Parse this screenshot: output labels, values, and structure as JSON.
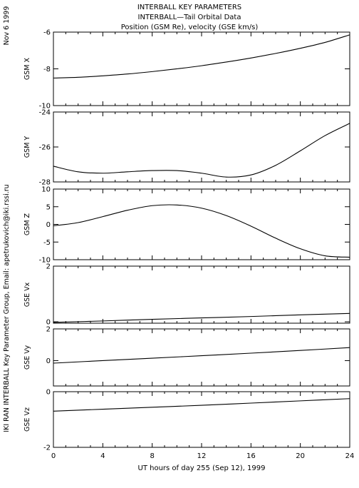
{
  "header": {
    "date_label": "Nov  6 1999",
    "title_lines": [
      "INTERBALL KEY PARAMETERS",
      "INTERBALL—Tail Orbital Data",
      "Position (GSM Re), velocity (GSE km/s)"
    ]
  },
  "side_credit": "IKI RAN INTERBALL Key Parameter Group, Email: apetrukovich@iki.rssi.ru",
  "chart_data": {
    "type": "line",
    "xlabel": "UT hours of day 255 (Sep 12), 1999",
    "xlim": [
      0,
      24
    ],
    "xticks": [
      0,
      4,
      8,
      12,
      16,
      20,
      24
    ],
    "panels": [
      {
        "ylabel": "GSM X",
        "ylim": [
          -10,
          -6
        ],
        "yticks": [
          -10,
          -8,
          -6
        ],
        "x": [
          0,
          2,
          4,
          6,
          8,
          10,
          12,
          14,
          16,
          18,
          20,
          22,
          24
        ],
        "values": [
          -8.5,
          -8.46,
          -8.38,
          -8.28,
          -8.15,
          -8.0,
          -7.83,
          -7.63,
          -7.41,
          -7.16,
          -6.88,
          -6.56,
          -6.15
        ]
      },
      {
        "ylabel": "GSM Y",
        "ylim": [
          -28,
          -24
        ],
        "yticks": [
          -28,
          -26,
          -24
        ],
        "x": [
          0,
          2,
          4,
          6,
          8,
          10,
          12,
          14,
          16,
          18,
          20,
          22,
          24
        ],
        "values": [
          -27.1,
          -27.42,
          -27.5,
          -27.42,
          -27.35,
          -27.35,
          -27.5,
          -27.72,
          -27.6,
          -27.05,
          -26.22,
          -25.35,
          -24.65
        ]
      },
      {
        "ylabel": "GSM Z",
        "ylim": [
          -10,
          10
        ],
        "yticks": [
          -10,
          -5,
          0,
          5,
          10
        ],
        "x": [
          0,
          2,
          4,
          6,
          8,
          10,
          12,
          14,
          16,
          18,
          20,
          22,
          24
        ],
        "values": [
          -0.4,
          0.5,
          2.2,
          4.0,
          5.3,
          5.5,
          4.6,
          2.5,
          -0.5,
          -3.9,
          -6.9,
          -8.9,
          -9.3
        ]
      },
      {
        "ylabel": "GSE Vx",
        "ylim": [
          -0.05,
          2
        ],
        "yticks": [
          0,
          2
        ],
        "x": [
          0,
          4,
          8,
          12,
          16,
          20,
          24
        ],
        "values": [
          -0.02,
          0.03,
          0.09,
          0.14,
          0.19,
          0.25,
          0.3
        ]
      },
      {
        "ylabel": "GSE Vy",
        "ylim": [
          -1.6,
          2
        ],
        "yticks": [
          0,
          2
        ],
        "x": [
          0,
          4,
          8,
          12,
          16,
          20,
          24
        ],
        "values": [
          -0.16,
          0.0,
          0.15,
          0.31,
          0.47,
          0.64,
          0.82
        ]
      },
      {
        "ylabel": "GSE Vz",
        "ylim": [
          -2,
          0
        ],
        "yticks": [
          -2,
          0
        ],
        "x": [
          0,
          4,
          8,
          12,
          16,
          20,
          24
        ],
        "values": [
          -0.7,
          -0.63,
          -0.56,
          -0.49,
          -0.41,
          -0.33,
          -0.25
        ]
      }
    ]
  }
}
